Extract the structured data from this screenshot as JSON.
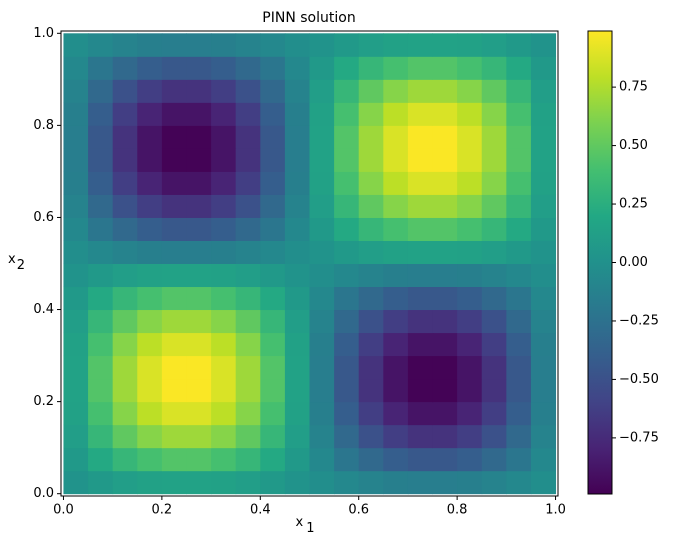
{
  "chart_data": {
    "type": "heatmap",
    "title": "PINN solution",
    "xlabel": "x",
    "xlabel_sub": "1",
    "ylabel": "x",
    "ylabel_sub": "2",
    "x_edges": [
      0,
      0.05,
      0.1,
      0.15,
      0.2,
      0.25,
      0.3,
      0.35,
      0.4,
      0.45,
      0.5,
      0.55,
      0.6,
      0.65,
      0.7,
      0.75,
      0.8,
      0.85,
      0.9,
      0.95,
      1
    ],
    "y_edges": [
      0,
      0.05,
      0.1,
      0.15,
      0.2,
      0.25,
      0.3,
      0.35,
      0.4,
      0.45,
      0.5,
      0.55,
      0.6,
      0.65,
      0.7,
      0.75,
      0.8,
      0.85,
      0.9,
      0.95,
      1
    ],
    "z": [
      [
        0.02,
        0.07,
        0.11,
        0.14,
        0.15,
        0.15,
        0.14,
        0.11,
        0.07,
        0.02,
        -0.02,
        -0.07,
        -0.11,
        -0.14,
        -0.15,
        -0.15,
        -0.14,
        -0.11,
        -0.07,
        -0.02
      ],
      [
        0.07,
        0.21,
        0.32,
        0.4,
        0.45,
        0.45,
        0.4,
        0.32,
        0.21,
        0.07,
        -0.07,
        -0.21,
        -0.32,
        -0.4,
        -0.45,
        -0.45,
        -0.4,
        -0.32,
        -0.21,
        -0.07
      ],
      [
        0.11,
        0.32,
        0.5,
        0.63,
        0.7,
        0.7,
        0.63,
        0.5,
        0.32,
        0.11,
        -0.11,
        -0.32,
        -0.5,
        -0.63,
        -0.7,
        -0.7,
        -0.63,
        -0.5,
        -0.32,
        -0.11
      ],
      [
        0.14,
        0.4,
        0.63,
        0.79,
        0.88,
        0.88,
        0.79,
        0.63,
        0.4,
        0.14,
        -0.14,
        -0.4,
        -0.63,
        -0.79,
        -0.88,
        -0.88,
        -0.79,
        -0.63,
        -0.4,
        -0.14
      ],
      [
        0.15,
        0.45,
        0.7,
        0.88,
        0.98,
        0.98,
        0.88,
        0.7,
        0.45,
        0.15,
        -0.15,
        -0.45,
        -0.7,
        -0.88,
        -0.98,
        -0.98,
        -0.88,
        -0.7,
        -0.45,
        -0.15
      ],
      [
        0.15,
        0.45,
        0.7,
        0.88,
        0.98,
        0.98,
        0.88,
        0.7,
        0.45,
        0.15,
        -0.15,
        -0.45,
        -0.7,
        -0.88,
        -0.98,
        -0.98,
        -0.88,
        -0.7,
        -0.45,
        -0.15
      ],
      [
        0.14,
        0.4,
        0.63,
        0.79,
        0.88,
        0.88,
        0.79,
        0.63,
        0.4,
        0.14,
        -0.14,
        -0.4,
        -0.63,
        -0.79,
        -0.88,
        -0.88,
        -0.79,
        -0.63,
        -0.4,
        -0.14
      ],
      [
        0.11,
        0.32,
        0.5,
        0.63,
        0.7,
        0.7,
        0.63,
        0.5,
        0.32,
        0.11,
        -0.11,
        -0.32,
        -0.5,
        -0.63,
        -0.7,
        -0.7,
        -0.63,
        -0.5,
        -0.32,
        -0.11
      ],
      [
        0.07,
        0.21,
        0.32,
        0.4,
        0.45,
        0.45,
        0.4,
        0.32,
        0.21,
        0.07,
        -0.07,
        -0.21,
        -0.32,
        -0.4,
        -0.45,
        -0.45,
        -0.4,
        -0.32,
        -0.21,
        -0.07
      ],
      [
        0.02,
        0.07,
        0.11,
        0.14,
        0.15,
        0.15,
        0.14,
        0.11,
        0.07,
        0.02,
        -0.02,
        -0.07,
        -0.11,
        -0.14,
        -0.15,
        -0.15,
        -0.14,
        -0.11,
        -0.07,
        -0.02
      ],
      [
        -0.02,
        -0.07,
        -0.11,
        -0.14,
        -0.15,
        -0.15,
        -0.14,
        -0.11,
        -0.07,
        -0.02,
        0.02,
        0.07,
        0.11,
        0.14,
        0.15,
        0.15,
        0.14,
        0.11,
        0.07,
        0.02
      ],
      [
        -0.07,
        -0.21,
        -0.32,
        -0.4,
        -0.45,
        -0.45,
        -0.4,
        -0.32,
        -0.21,
        -0.07,
        0.07,
        0.21,
        0.32,
        0.4,
        0.45,
        0.45,
        0.4,
        0.32,
        0.21,
        0.07
      ],
      [
        -0.11,
        -0.32,
        -0.5,
        -0.63,
        -0.7,
        -0.7,
        -0.63,
        -0.5,
        -0.32,
        -0.11,
        0.11,
        0.32,
        0.5,
        0.63,
        0.7,
        0.7,
        0.63,
        0.5,
        0.32,
        0.11
      ],
      [
        -0.14,
        -0.4,
        -0.63,
        -0.79,
        -0.88,
        -0.88,
        -0.79,
        -0.63,
        -0.4,
        -0.14,
        0.14,
        0.4,
        0.63,
        0.79,
        0.88,
        0.88,
        0.79,
        0.63,
        0.4,
        0.14
      ],
      [
        -0.15,
        -0.45,
        -0.7,
        -0.88,
        -0.98,
        -0.98,
        -0.88,
        -0.7,
        -0.45,
        -0.15,
        0.15,
        0.45,
        0.7,
        0.88,
        0.98,
        0.98,
        0.88,
        0.7,
        0.45,
        0.15
      ],
      [
        -0.15,
        -0.45,
        -0.7,
        -0.88,
        -0.98,
        -0.98,
        -0.88,
        -0.7,
        -0.45,
        -0.15,
        0.15,
        0.45,
        0.7,
        0.88,
        0.98,
        0.98,
        0.88,
        0.7,
        0.45,
        0.15
      ],
      [
        -0.14,
        -0.4,
        -0.63,
        -0.79,
        -0.88,
        -0.88,
        -0.79,
        -0.63,
        -0.4,
        -0.14,
        0.14,
        0.4,
        0.63,
        0.79,
        0.88,
        0.88,
        0.79,
        0.63,
        0.4,
        0.14
      ],
      [
        -0.11,
        -0.32,
        -0.5,
        -0.63,
        -0.7,
        -0.7,
        -0.63,
        -0.5,
        -0.32,
        -0.11,
        0.11,
        0.32,
        0.5,
        0.63,
        0.7,
        0.7,
        0.63,
        0.5,
        0.32,
        0.11
      ],
      [
        -0.07,
        -0.21,
        -0.32,
        -0.4,
        -0.45,
        -0.45,
        -0.4,
        -0.32,
        -0.21,
        -0.07,
        0.07,
        0.21,
        0.32,
        0.4,
        0.45,
        0.45,
        0.4,
        0.32,
        0.21,
        0.07
      ],
      [
        -0.02,
        -0.07,
        -0.11,
        -0.14,
        -0.15,
        -0.15,
        -0.14,
        -0.11,
        -0.07,
        -0.02,
        0.02,
        0.07,
        0.11,
        0.14,
        0.15,
        0.15,
        0.14,
        0.11,
        0.07,
        0.02
      ]
    ],
    "colormap": "viridis",
    "zlim": [
      -0.99,
      0.99
    ],
    "xlim": [
      -0.005,
      1.005
    ],
    "ylim": [
      -0.005,
      1.005
    ],
    "xticks": [
      {
        "value": 0,
        "label": "0.0"
      },
      0.2,
      0.4,
      0.6,
      0.8,
      {
        "value": 1,
        "label": "1.0"
      }
    ],
    "yticks": [
      {
        "value": 0,
        "label": "0.0"
      },
      0.2,
      0.4,
      0.6,
      0.8,
      {
        "value": 1,
        "label": "1.0"
      }
    ],
    "zticks": [
      {
        "value": -0.75,
        "label": "−0.75"
      },
      {
        "value": -0.5,
        "label": "−0.50"
      },
      {
        "value": -0.25,
        "label": "−0.25"
      },
      {
        "value": 0,
        "label": "0.00"
      },
      {
        "value": 0.25,
        "label": "0.25"
      },
      {
        "value": 0.5,
        "label": "0.50"
      },
      {
        "value": 0.75,
        "label": "0.75"
      }
    ]
  }
}
